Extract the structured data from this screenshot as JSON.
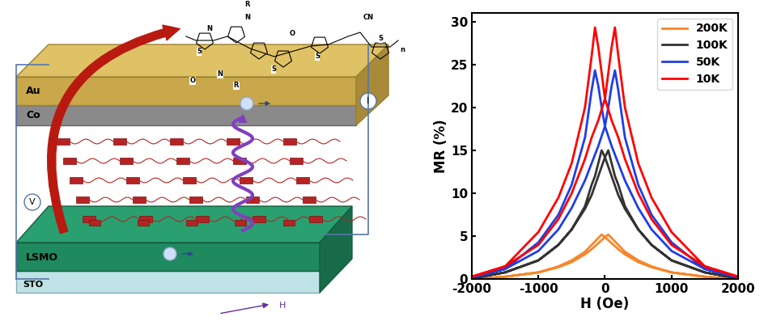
{
  "diagram": {
    "top_electrode": {
      "upper": "Au",
      "lower": "Co"
    },
    "bottom_electrode": {
      "upper": "LSMO",
      "lower": "STO"
    },
    "voltage": "V",
    "current": "I",
    "field": "H",
    "molecule_labels": [
      "R",
      "N",
      "O",
      "N",
      "S",
      "S",
      "S",
      "CN",
      "S",
      "n",
      "O",
      "N",
      "R"
    ]
  },
  "chart_data": {
    "type": "line",
    "xlabel": "H (Oe)",
    "ylabel": "MR (%)",
    "x": [
      2000,
      1500,
      1000,
      700,
      500,
      300,
      200,
      100,
      0,
      -50,
      -100,
      -150,
      -200,
      -300,
      -500,
      -700,
      -1000,
      -1500,
      -2000,
      -2000,
      -1500,
      -1000,
      -700,
      -500,
      -300,
      -200,
      -100,
      0,
      50,
      100,
      150,
      200,
      300,
      500,
      700,
      1000,
      1500,
      2000
    ],
    "series": [
      {
        "name": "200K",
        "color": "#f7862a",
        "values": [
          0,
          0.3,
          0.8,
          1.4,
          2,
          2.9,
          3.5,
          4.2,
          4.9,
          5.2,
          4.8,
          4.4,
          4,
          3.2,
          2.2,
          1.5,
          0.8,
          0.3,
          0,
          0,
          0.3,
          0.8,
          1.4,
          2,
          2.9,
          3.5,
          4.2,
          4.9,
          5.2,
          4.8,
          4.4,
          4,
          3.2,
          2.2,
          1.5,
          0.8,
          0.3,
          0
        ]
      },
      {
        "name": "100K",
        "color": "#333333",
        "values": [
          0.1,
          0.8,
          2.2,
          4,
          5.8,
          8.2,
          9.8,
          12,
          14.2,
          15,
          13.5,
          12,
          11,
          8.5,
          5.8,
          4,
          2.2,
          0.8,
          0.1,
          0.1,
          0.8,
          2.2,
          4,
          5.8,
          8.2,
          9.8,
          12,
          14.2,
          15,
          13.5,
          12,
          11,
          8.5,
          5.8,
          4,
          2.2,
          0.8,
          0.1
        ]
      },
      {
        "name": "50K",
        "color": "#1f3ee6",
        "values": [
          0.2,
          1.2,
          3.3,
          5.8,
          8.3,
          11.5,
          13.5,
          15.5,
          17.8,
          20,
          22.5,
          24.3,
          22,
          16.5,
          11,
          7.5,
          4.3,
          1.2,
          0.2,
          0.2,
          1.2,
          3.3,
          5.8,
          8.3,
          11.5,
          13.5,
          15.5,
          17.8,
          20,
          22.5,
          24.3,
          22,
          16.5,
          11,
          7.5,
          4.3,
          1.2,
          0.2
        ]
      },
      {
        "name": "10K",
        "color": "#ff0000",
        "values": [
          0.3,
          1.5,
          4,
          7,
          10,
          14,
          16.5,
          18.5,
          21,
          24,
          27,
          29.3,
          26,
          20,
          13.5,
          9.5,
          5.5,
          1.5,
          0.3,
          0.3,
          1.5,
          4,
          7,
          10,
          14,
          16.5,
          18.5,
          21,
          24,
          27,
          29.3,
          26,
          20,
          13.5,
          9.5,
          5.5,
          1.5,
          0.3
        ]
      }
    ],
    "xlim": [
      -2000,
      2000
    ],
    "xticks": [
      -2000,
      -1000,
      0,
      1000,
      2000
    ],
    "ylim": [
      0,
      31
    ],
    "yticks": [
      0,
      5,
      10,
      15,
      20,
      25,
      30
    ],
    "legend": "upper right",
    "grid": false
  }
}
